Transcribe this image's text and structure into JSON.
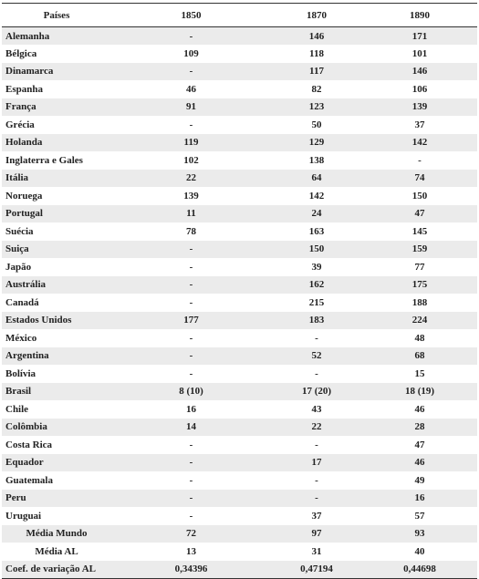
{
  "table": {
    "headers": [
      "Países",
      "1850",
      "1870",
      "1890"
    ],
    "rows": [
      [
        "Alemanha",
        "-",
        "146",
        "171"
      ],
      [
        "Bélgica",
        "109",
        "118",
        "101"
      ],
      [
        "Dinamarca",
        "-",
        "117",
        "146"
      ],
      [
        "Espanha",
        "46",
        "82",
        "106"
      ],
      [
        "França",
        "91",
        "123",
        "139"
      ],
      [
        "Grécia",
        "-",
        "50",
        "37"
      ],
      [
        "Holanda",
        "119",
        "129",
        "142"
      ],
      [
        "Inglaterra e Gales",
        "102",
        "138",
        "-"
      ],
      [
        "Itália",
        "22",
        "64",
        "74"
      ],
      [
        "Noruega",
        "139",
        "142",
        "150"
      ],
      [
        "Portugal",
        "11",
        "24",
        "47"
      ],
      [
        "Suécia",
        "78",
        "163",
        "145"
      ],
      [
        "Suiça",
        "-",
        "150",
        "159"
      ],
      [
        "Japão",
        "-",
        "39",
        "77"
      ],
      [
        "Austrália",
        "-",
        "162",
        "175"
      ],
      [
        "Canadá",
        "-",
        "215",
        "188"
      ],
      [
        "Estados Unidos",
        "177",
        "183",
        "224"
      ],
      [
        "México",
        "-",
        "-",
        "48"
      ],
      [
        "Argentina",
        "-",
        "52",
        "68"
      ],
      [
        "Bolívia",
        "-",
        "-",
        "15"
      ],
      [
        "Brasil",
        "8 (10)",
        "17 (20)",
        "18 (19)"
      ],
      [
        "Chile",
        "16",
        "43",
        "46"
      ],
      [
        "Colômbia",
        "14",
        "22",
        "28"
      ],
      [
        "Costa Rica",
        "-",
        "-",
        "47"
      ],
      [
        "Equador",
        "-",
        "17",
        "46"
      ],
      [
        "Guatemala",
        "-",
        "-",
        "49"
      ],
      [
        "Peru",
        "-",
        "-",
        "16"
      ],
      [
        "Uruguai",
        "-",
        "37",
        "57"
      ],
      [
        "Média Mundo",
        "72",
        "97",
        "93"
      ],
      [
        "Média AL",
        "13",
        "31",
        "40"
      ],
      [
        "Coef. de variação AL",
        "0,34396",
        "0,47194",
        "0,44698"
      ]
    ]
  }
}
